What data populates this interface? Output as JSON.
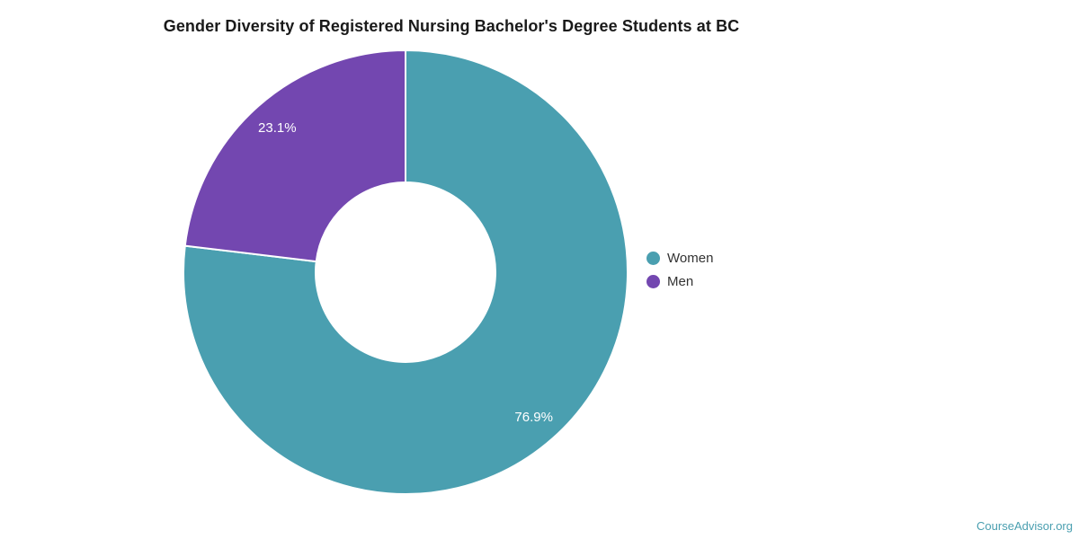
{
  "title": "Gender Diversity of Registered Nursing Bachelor's Degree Students at BC",
  "chart_data": {
    "type": "pie",
    "title": "Gender Diversity of Registered Nursing Bachelor's Degree Students at BC",
    "donut": true,
    "start_angle_deg": 0,
    "direction": "clockwise",
    "inner_radius_ratio": 0.405,
    "legend_position": "right",
    "slice_label_color": "#FFFFFF",
    "slices": [
      {
        "name": "Women",
        "value": 76.9,
        "label": "76.9%",
        "color": "#4A9FB0"
      },
      {
        "name": "Men",
        "value": 23.1,
        "label": "23.1%",
        "color": "#7347B0"
      }
    ]
  },
  "watermark": {
    "text": "CourseAdvisor.org",
    "color": "#4A9FB0"
  }
}
